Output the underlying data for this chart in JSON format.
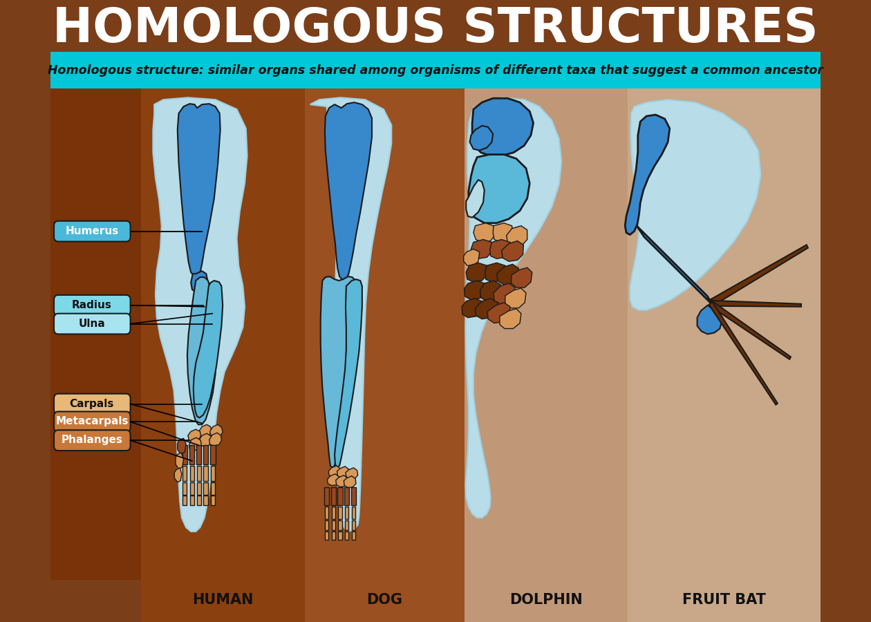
{
  "title": "HOMOLOGOUS STRUCTURES",
  "subtitle": "Homologous structure: similar organs shared among organisms of different taxa that suggest a common ancestor",
  "animals": [
    "HUMAN",
    "DOG",
    "DOLPHIN",
    "FRUIT BAT"
  ],
  "labels": [
    "Humerus",
    "Radius",
    "Ulna",
    "Carpals",
    "Metacarpals",
    "Phalanges"
  ],
  "label_colors": [
    "#4ab8d8",
    "#7dd8e8",
    "#a8e4f0",
    "#e8b878",
    "#c87838",
    "#c87838"
  ],
  "bg_title": "#7a3e18",
  "bg_subtitle": "#00c8d8",
  "bg_left_panel": "#7a3208",
  "bg_human": "#8b4010",
  "bg_dog": "#9a5020",
  "bg_dolphin": "#c09878",
  "bg_bat": "#c8a888",
  "bone_blue_dark": "#3888cc",
  "bone_blue_mid": "#68b8d8",
  "bone_blue_light": "#b8dde8",
  "bone_brown_dark": "#6a3008",
  "bone_brown_mid": "#984820",
  "bone_brown_light": "#d89858",
  "outline_color": "#1a1a1a",
  "white": "#ffffff",
  "black": "#000000"
}
